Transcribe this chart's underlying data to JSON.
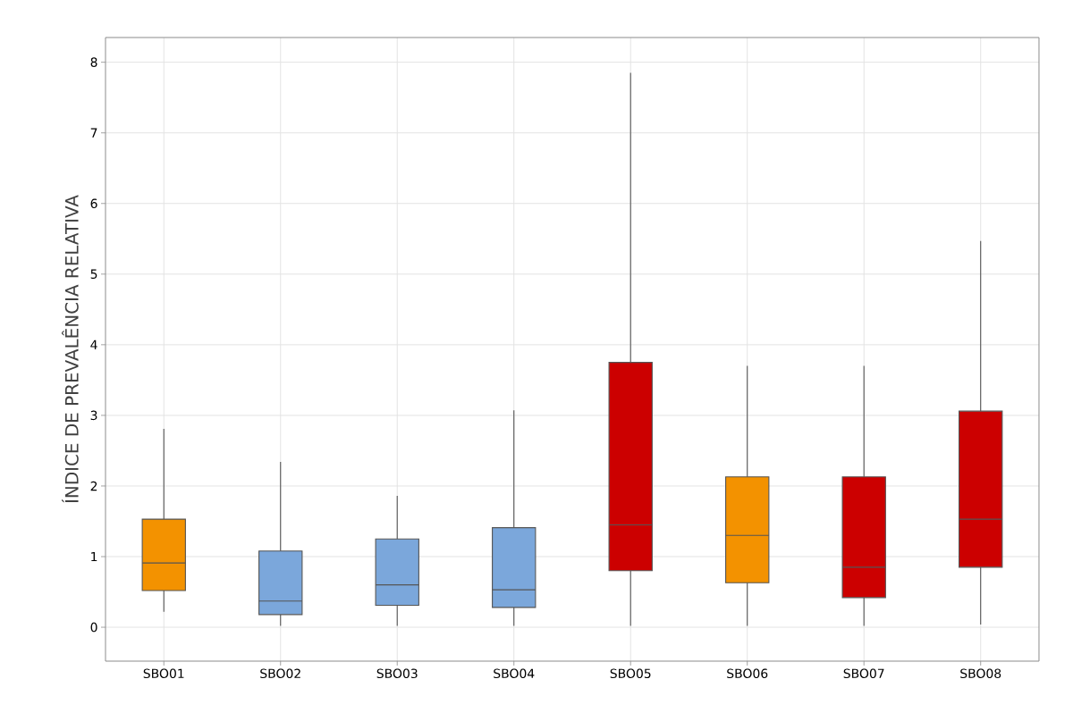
{
  "chart_data": {
    "type": "box",
    "ylabel": "ÍNDICE DE PREVALÊNCIA RELATIVA",
    "categories": [
      "SBO01",
      "SBO02",
      "SBO03",
      "SBO04",
      "SBO05",
      "SBO06",
      "SBO07",
      "SBO08"
    ],
    "boxes": [
      {
        "low": 0.22,
        "q1": 0.52,
        "median": 0.91,
        "q3": 1.53,
        "high": 2.81
      },
      {
        "low": 0.02,
        "q1": 0.18,
        "median": 0.37,
        "q3": 1.08,
        "high": 2.34
      },
      {
        "low": 0.02,
        "q1": 0.31,
        "median": 0.6,
        "q3": 1.25,
        "high": 1.86
      },
      {
        "low": 0.02,
        "q1": 0.28,
        "median": 0.53,
        "q3": 1.41,
        "high": 3.07
      },
      {
        "low": 0.02,
        "q1": 0.8,
        "median": 1.45,
        "q3": 3.75,
        "high": 7.85
      },
      {
        "low": 0.02,
        "q1": 0.63,
        "median": 1.3,
        "q3": 2.13,
        "high": 3.7
      },
      {
        "low": 0.02,
        "q1": 0.42,
        "median": 0.85,
        "q3": 2.13,
        "high": 3.7
      },
      {
        "low": 0.04,
        "q1": 0.85,
        "median": 1.53,
        "q3": 3.06,
        "high": 5.47
      }
    ],
    "colors": [
      "#f39200",
      "#7ba7db",
      "#7ba7db",
      "#7ba7db",
      "#cc0000",
      "#f39200",
      "#cc0000",
      "#cc0000"
    ],
    "ylim": [
      -0.48,
      8.35
    ],
    "yticks": [
      0,
      1,
      2,
      3,
      4,
      5,
      6,
      7,
      8
    ],
    "grid": true
  }
}
